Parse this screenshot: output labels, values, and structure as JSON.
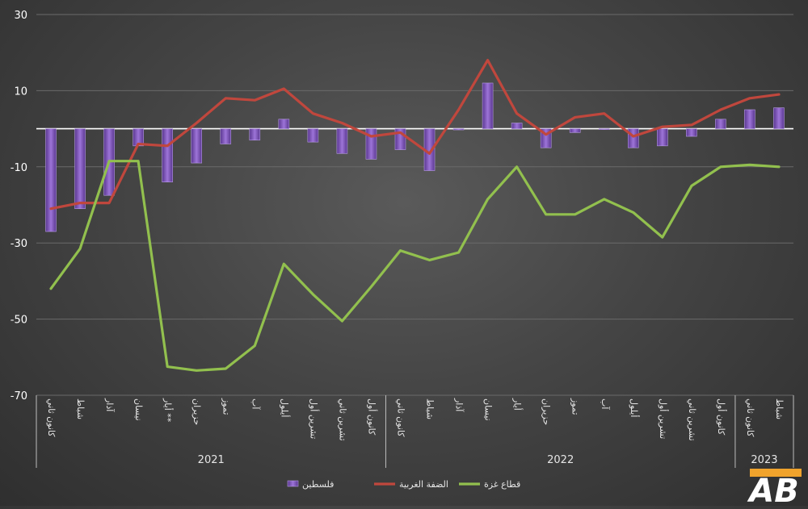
{
  "chart_data": {
    "type": "bar",
    "y_ticks": [
      "30",
      "10",
      "-10",
      "-30",
      "-50",
      "-70"
    ],
    "ylim": [
      -70,
      30
    ],
    "grid": true,
    "legend_position": "bottom",
    "categories": [
      "كانون ثاني",
      "شباط",
      "آذار",
      "نيسان",
      "أيار **",
      "حزيران",
      "تموز",
      "آب",
      "أيلول",
      "تشرين أول",
      "تشرين ثاني",
      "كانون أول",
      "كانون ثاني",
      "شباط",
      "آذار",
      "نيسان",
      "أيار",
      "حزيران",
      "تموز",
      "آب",
      "أيلول",
      "تشرين أول",
      "تشرين ثاني",
      "كانون أول",
      "كانون ثاني",
      "شباط"
    ],
    "years": [
      {
        "label": "2021",
        "start": 0,
        "end": 11
      },
      {
        "label": "2022",
        "start": 12,
        "end": 23
      },
      {
        "label": "2023",
        "start": 24,
        "end": 25
      }
    ],
    "series": [
      {
        "name": "فلسطين",
        "kind": "bar",
        "color": "#8a5cc8",
        "values": [
          -27,
          -21,
          -17.5,
          -4.5,
          -14,
          -9,
          -4,
          -3,
          2.5,
          -3.5,
          -6.5,
          -8,
          -5.5,
          -11,
          -0.3,
          12,
          1.5,
          -5,
          -1,
          0,
          -5,
          -4.5,
          -2,
          2.5,
          5,
          5.5
        ]
      },
      {
        "name": "الضفة الغربية",
        "kind": "line",
        "color": "#c0473d",
        "values": [
          -21,
          -19.5,
          -19.5,
          -4,
          -4.5,
          1.5,
          8,
          7.5,
          10.5,
          4,
          1.5,
          -2,
          -1,
          -6.5,
          5,
          18,
          4,
          -1.5,
          3,
          4,
          -2,
          0.5,
          1,
          5,
          8,
          9
        ]
      },
      {
        "name": "قطاع غزة",
        "kind": "line",
        "color": "#92c04e",
        "values": [
          -42,
          -31.5,
          -8.5,
          -8.5,
          -62.5,
          -63.5,
          -63,
          -57,
          -35.5,
          -43.5,
          -50.5,
          -41.5,
          -32,
          -34.5,
          -32.5,
          -18.5,
          -10,
          -22.5,
          -22.5,
          -18.5,
          -22,
          -28.5,
          -15,
          -10,
          -9.5,
          -10
        ]
      }
    ]
  },
  "logo": {
    "text": "AB",
    "colors": [
      "#ffffff",
      "#f0a32c"
    ]
  }
}
